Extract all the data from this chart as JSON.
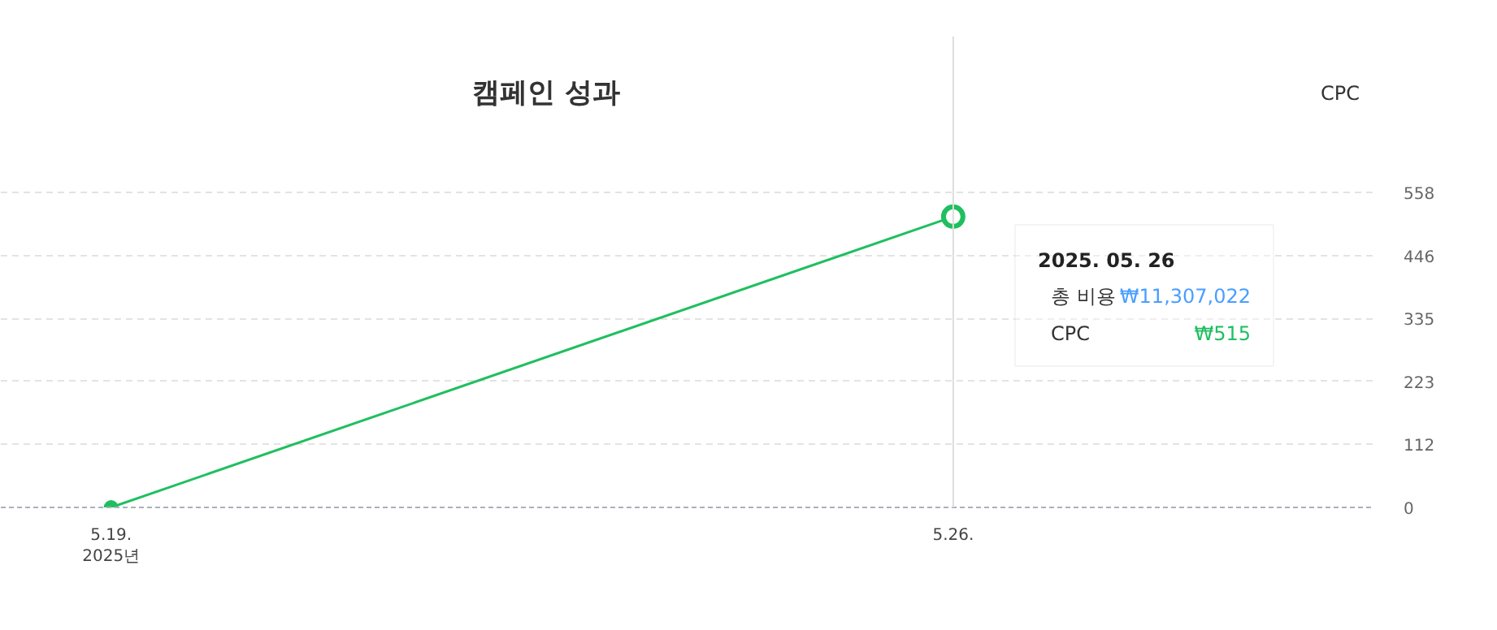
{
  "chart_data": {
    "type": "line",
    "title": "캠페인 성과",
    "x": [
      "2025-05-19",
      "2025-05-26"
    ],
    "series": [
      {
        "color": "#1fbf5f",
        "values": [
          0,
          515
        ]
      }
    ],
    "xlim": [
      "2025-05-18T02:00",
      "2025-05-29T12:00"
    ],
    "xticks": [
      {
        "value": "2025-05-19",
        "label": "5.19.\n2025년"
      },
      {
        "value": "2025-05-26",
        "label": "5.26."
      }
    ],
    "ylim": [
      0,
      834
    ],
    "yticks": [
      0,
      112,
      223,
      335,
      446,
      558
    ],
    "grid": "y",
    "marker": "circle",
    "line_style": "solid",
    "ref_lines": [
      {
        "axis": "x",
        "value": "2025-05-26",
        "label": null,
        "color": "#dddddd"
      }
    ],
    "annotations": [
      "CPC",
      "2025. 05. 26",
      "총 비용 ₩11,307,022",
      "CPC ₩515"
    ]
  }
}
